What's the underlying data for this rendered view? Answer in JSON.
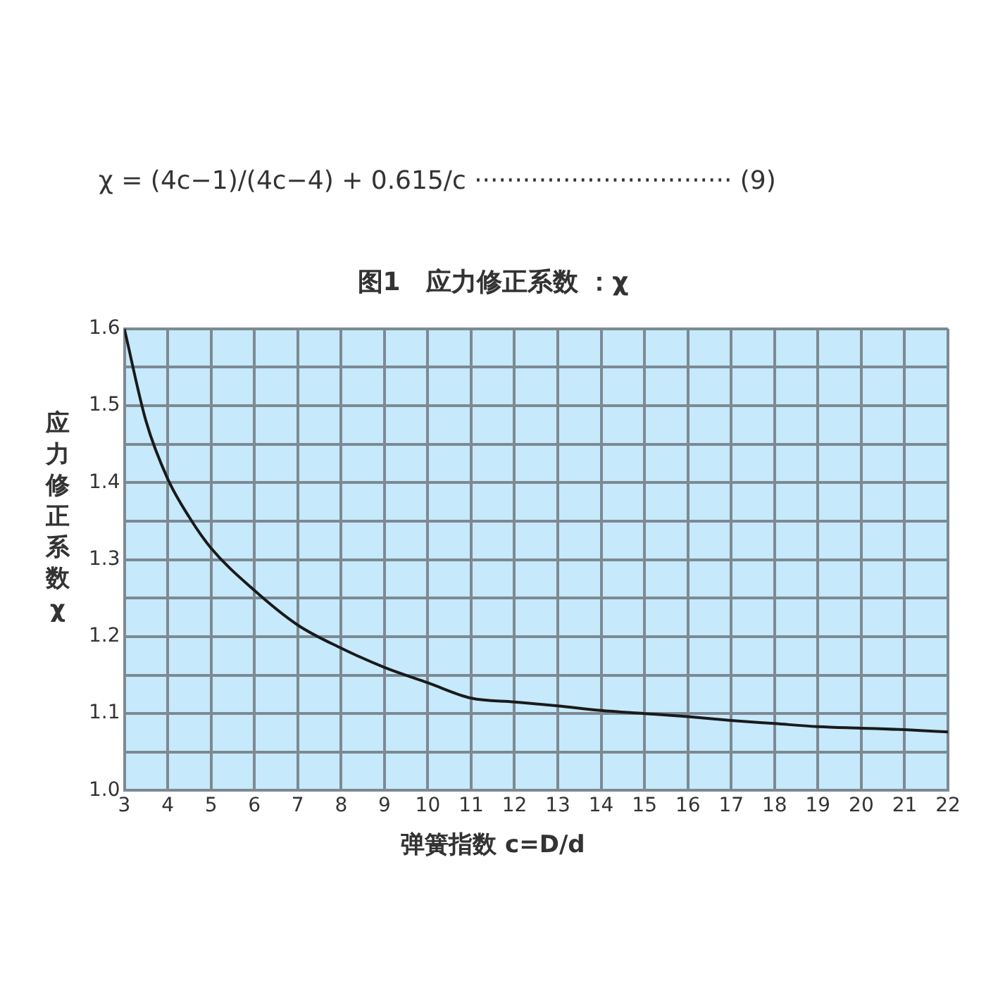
{
  "chart_data": {
    "type": "line",
    "title": "图1　应力修正系数 ：χ",
    "xlabel": "弹簧指数 c=D/d",
    "ylabel": "应力修正系数 χ",
    "annotations": [
      "χ = (4c−1)/(4c−4) + 0.615/c ································ (9)"
    ],
    "x": [
      3,
      3.5,
      4,
      4.5,
      5,
      6,
      7,
      8,
      9,
      10,
      11,
      12,
      13,
      14,
      15,
      16,
      17,
      18,
      19,
      20,
      21,
      22
    ],
    "series": [
      {
        "color": "#1a1a1a",
        "values": [
          1.6,
          1.48,
          1.405,
          1.355,
          1.315,
          1.26,
          1.215,
          1.185,
          1.16,
          1.14,
          1.12,
          1.115,
          1.11,
          1.104,
          1.1,
          1.096,
          1.091,
          1.087,
          1.083,
          1.081,
          1.079,
          1.076
        ]
      }
    ],
    "xlim": [
      3,
      22
    ],
    "xticks": [
      3,
      4,
      5,
      6,
      7,
      8,
      9,
      10,
      11,
      12,
      13,
      14,
      15,
      16,
      17,
      18,
      19,
      20,
      21,
      22
    ],
    "ylim": [
      1.0,
      1.6
    ],
    "yticks": [
      {
        "value": 1.0,
        "label": "1.0"
      },
      {
        "value": 1.05,
        "label": null
      },
      {
        "value": 1.1,
        "label": "1.1"
      },
      {
        "value": 1.15,
        "label": null
      },
      {
        "value": 1.2,
        "label": "1.2"
      },
      {
        "value": 1.25,
        "label": null
      },
      {
        "value": 1.3,
        "label": "1.3"
      },
      {
        "value": 1.35,
        "label": null
      },
      {
        "value": 1.4,
        "label": "1.4"
      },
      {
        "value": 1.45,
        "label": null
      },
      {
        "value": 1.5,
        "label": "1.5"
      },
      {
        "value": 1.55,
        "label": null
      },
      {
        "value": 1.6,
        "label": "1.6"
      }
    ],
    "grid": true,
    "legend": false,
    "marker": "none",
    "line_style": "solid"
  }
}
